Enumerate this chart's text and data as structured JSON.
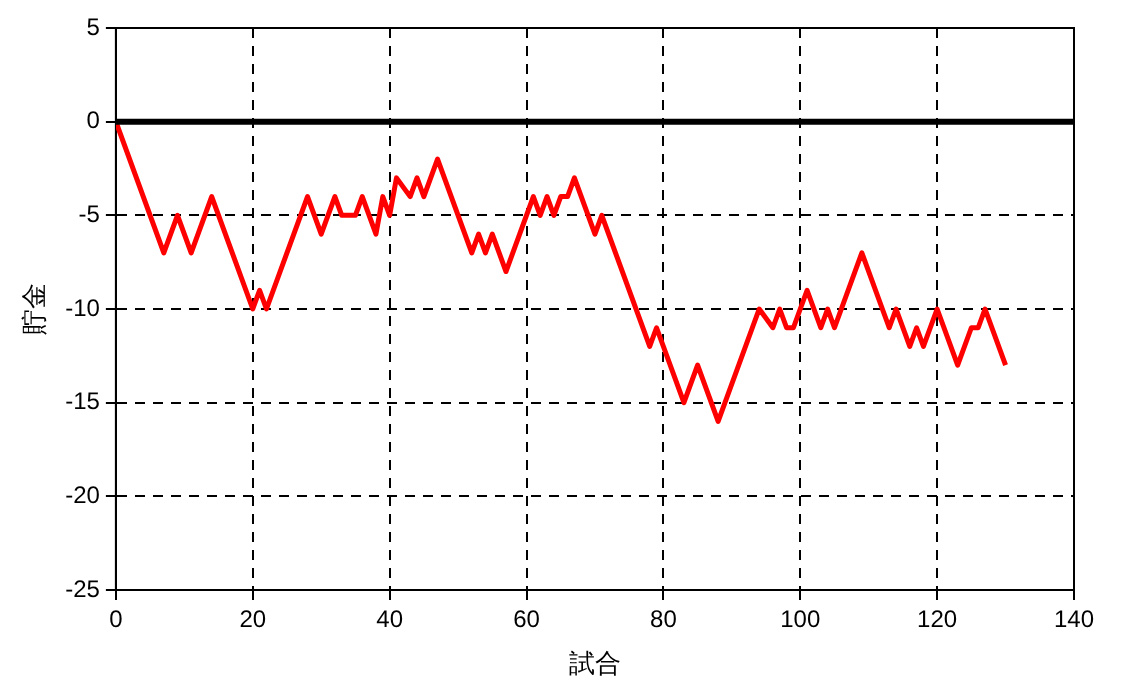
{
  "chart_data": {
    "type": "line",
    "xlabel": "試合",
    "ylabel": "貯金",
    "x": [
      0,
      7,
      9,
      11,
      14,
      20,
      21,
      22,
      28,
      30,
      32,
      33,
      35,
      36,
      38,
      39,
      40,
      41,
      43,
      44,
      45,
      47,
      52,
      53,
      54,
      55,
      57,
      61,
      62,
      63,
      64,
      65,
      66,
      67,
      70,
      71,
      78,
      79,
      83,
      85,
      88,
      94,
      96,
      97,
      98,
      99,
      101,
      103,
      104,
      105,
      109,
      113,
      114,
      116,
      117,
      118,
      120,
      123,
      125,
      126,
      127,
      130
    ],
    "series": [
      {
        "color": "#ff0000",
        "values": [
          0,
          -7,
          -5,
          -7,
          -4,
          -10,
          -9,
          -10,
          -4,
          -6,
          -4,
          -5,
          -5,
          -4,
          -6,
          -4,
          -5,
          -3,
          -4,
          -3,
          -4,
          -2,
          -7,
          -6,
          -7,
          -6,
          -8,
          -4,
          -5,
          -4,
          -5,
          -4,
          -4,
          -3,
          -6,
          -5,
          -12,
          -11,
          -15,
          -13,
          -16,
          -10,
          -11,
          -10,
          -11,
          -11,
          -9,
          -11,
          -10,
          -11,
          -7,
          -11,
          -10,
          -12,
          -11,
          -12,
          -10,
          -13,
          -11,
          -11,
          -10,
          -13
        ]
      }
    ],
    "xlim": [
      0,
      140
    ],
    "xticks": [
      0,
      20,
      40,
      60,
      80,
      100,
      120,
      140
    ],
    "ylim": [
      -25,
      5
    ],
    "yticks": [
      -25,
      -20,
      -15,
      -10,
      -5,
      0,
      5
    ],
    "ref_lines": [
      {
        "axis": "y",
        "value": 0,
        "color": "#000000"
      }
    ],
    "grid": true,
    "legend": false,
    "marker": "none",
    "line_style": "solid"
  }
}
